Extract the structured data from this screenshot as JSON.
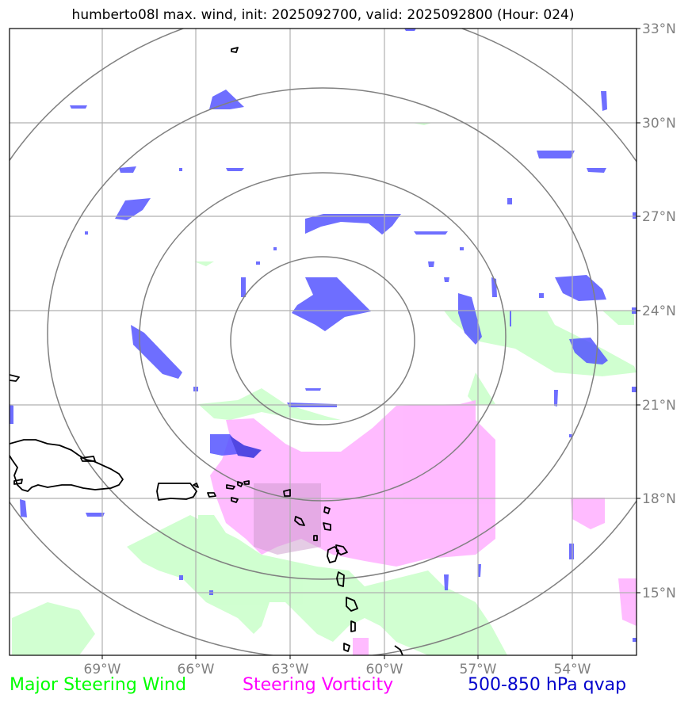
{
  "title": "humberto08l max. wind, init: 2025092700, valid: 2025092800 (Hour: 024)",
  "lon_ticks": [
    "69°W",
    "66°W",
    "63°W",
    "60°W",
    "57°W",
    "54°W"
  ],
  "lat_ticks": [
    "33°N",
    "30°N",
    "27°N",
    "24°N",
    "21°N",
    "18°N",
    "15°N"
  ],
  "legend": [
    {
      "label": "Major Steering Wind",
      "color": "#00ff00"
    },
    {
      "label": "Steering Vorticity",
      "color": "#ff00ff"
    },
    {
      "label": "500-850 hPa qvap",
      "color": "#0000cc"
    }
  ],
  "colors": {
    "steering_wind_fill": "#ccffcc",
    "vorticity_fill": "#ffaaff",
    "qvap_fill": "#5555ff",
    "range_rings": "#808080",
    "grid": "#b0b0b0",
    "tick_labels": "#808080"
  },
  "map": {
    "lon_range": [
      "72°W",
      "52°W"
    ],
    "lat_range": [
      "13°N",
      "33°N"
    ],
    "center": {
      "lon": -62,
      "lat": 23
    },
    "range_rings_count": 4,
    "coastlines": "Greater and Lesser Antilles"
  }
}
